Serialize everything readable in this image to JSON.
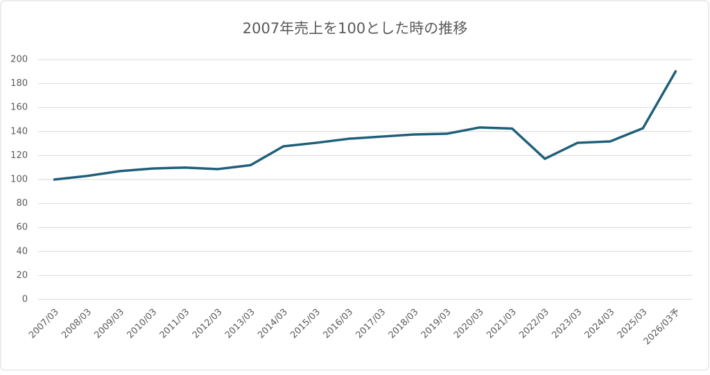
{
  "chart_data": {
    "type": "line",
    "title": "2007年売上を100とした時の推移",
    "categories": [
      "2007/03",
      "2008/03",
      "2009/03",
      "2010/03",
      "2011/03",
      "2012/03",
      "2013/03",
      "2014/03",
      "2015/03",
      "2016/03",
      "2017/03",
      "2018/03",
      "2019/03",
      "2020/03",
      "2021/03",
      "2022/03",
      "2023/03",
      "2024/03",
      "2025/03",
      "2026/03予"
    ],
    "values": [
      100,
      103,
      107,
      109.2,
      110,
      108.7,
      112,
      127.7,
      130.6,
      134,
      135.8,
      137.6,
      138.2,
      143.4,
      142.5,
      117.3,
      130.6,
      131.8,
      142.8,
      190.2
    ],
    "color": "#1f5f7a",
    "ylim": [
      0,
      200
    ],
    "yticks": [
      0,
      20,
      40,
      60,
      80,
      100,
      120,
      140,
      160,
      180,
      200
    ],
    "grid": true
  }
}
